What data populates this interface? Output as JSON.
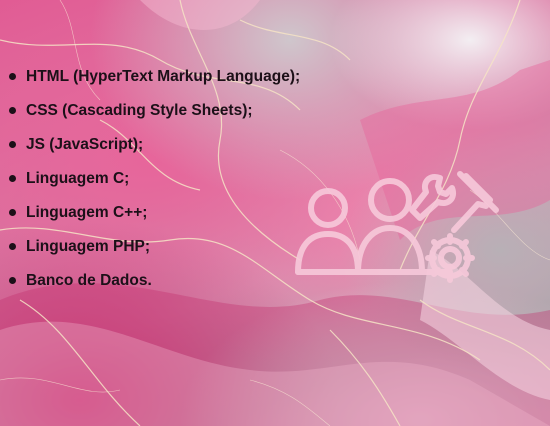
{
  "slide": {
    "background": "pink-marble",
    "accent_colors": {
      "pink": "#e05a93",
      "deep_pink": "#cc2e72",
      "gray": "#a9a1a7",
      "text": "#1c1018"
    },
    "items": [
      {
        "label": "HTML (HyperText Markup Language);"
      },
      {
        "label": "CSS (Cascading Style Sheets);"
      },
      {
        "label": "JS (JavaScript);"
      },
      {
        "label": "Linguagem C;"
      },
      {
        "label": "Linguagem C++;"
      },
      {
        "label": "Linguagem PHP;"
      },
      {
        "label": "Banco de Dados."
      }
    ],
    "icon": "team-tools-gear-icon"
  }
}
